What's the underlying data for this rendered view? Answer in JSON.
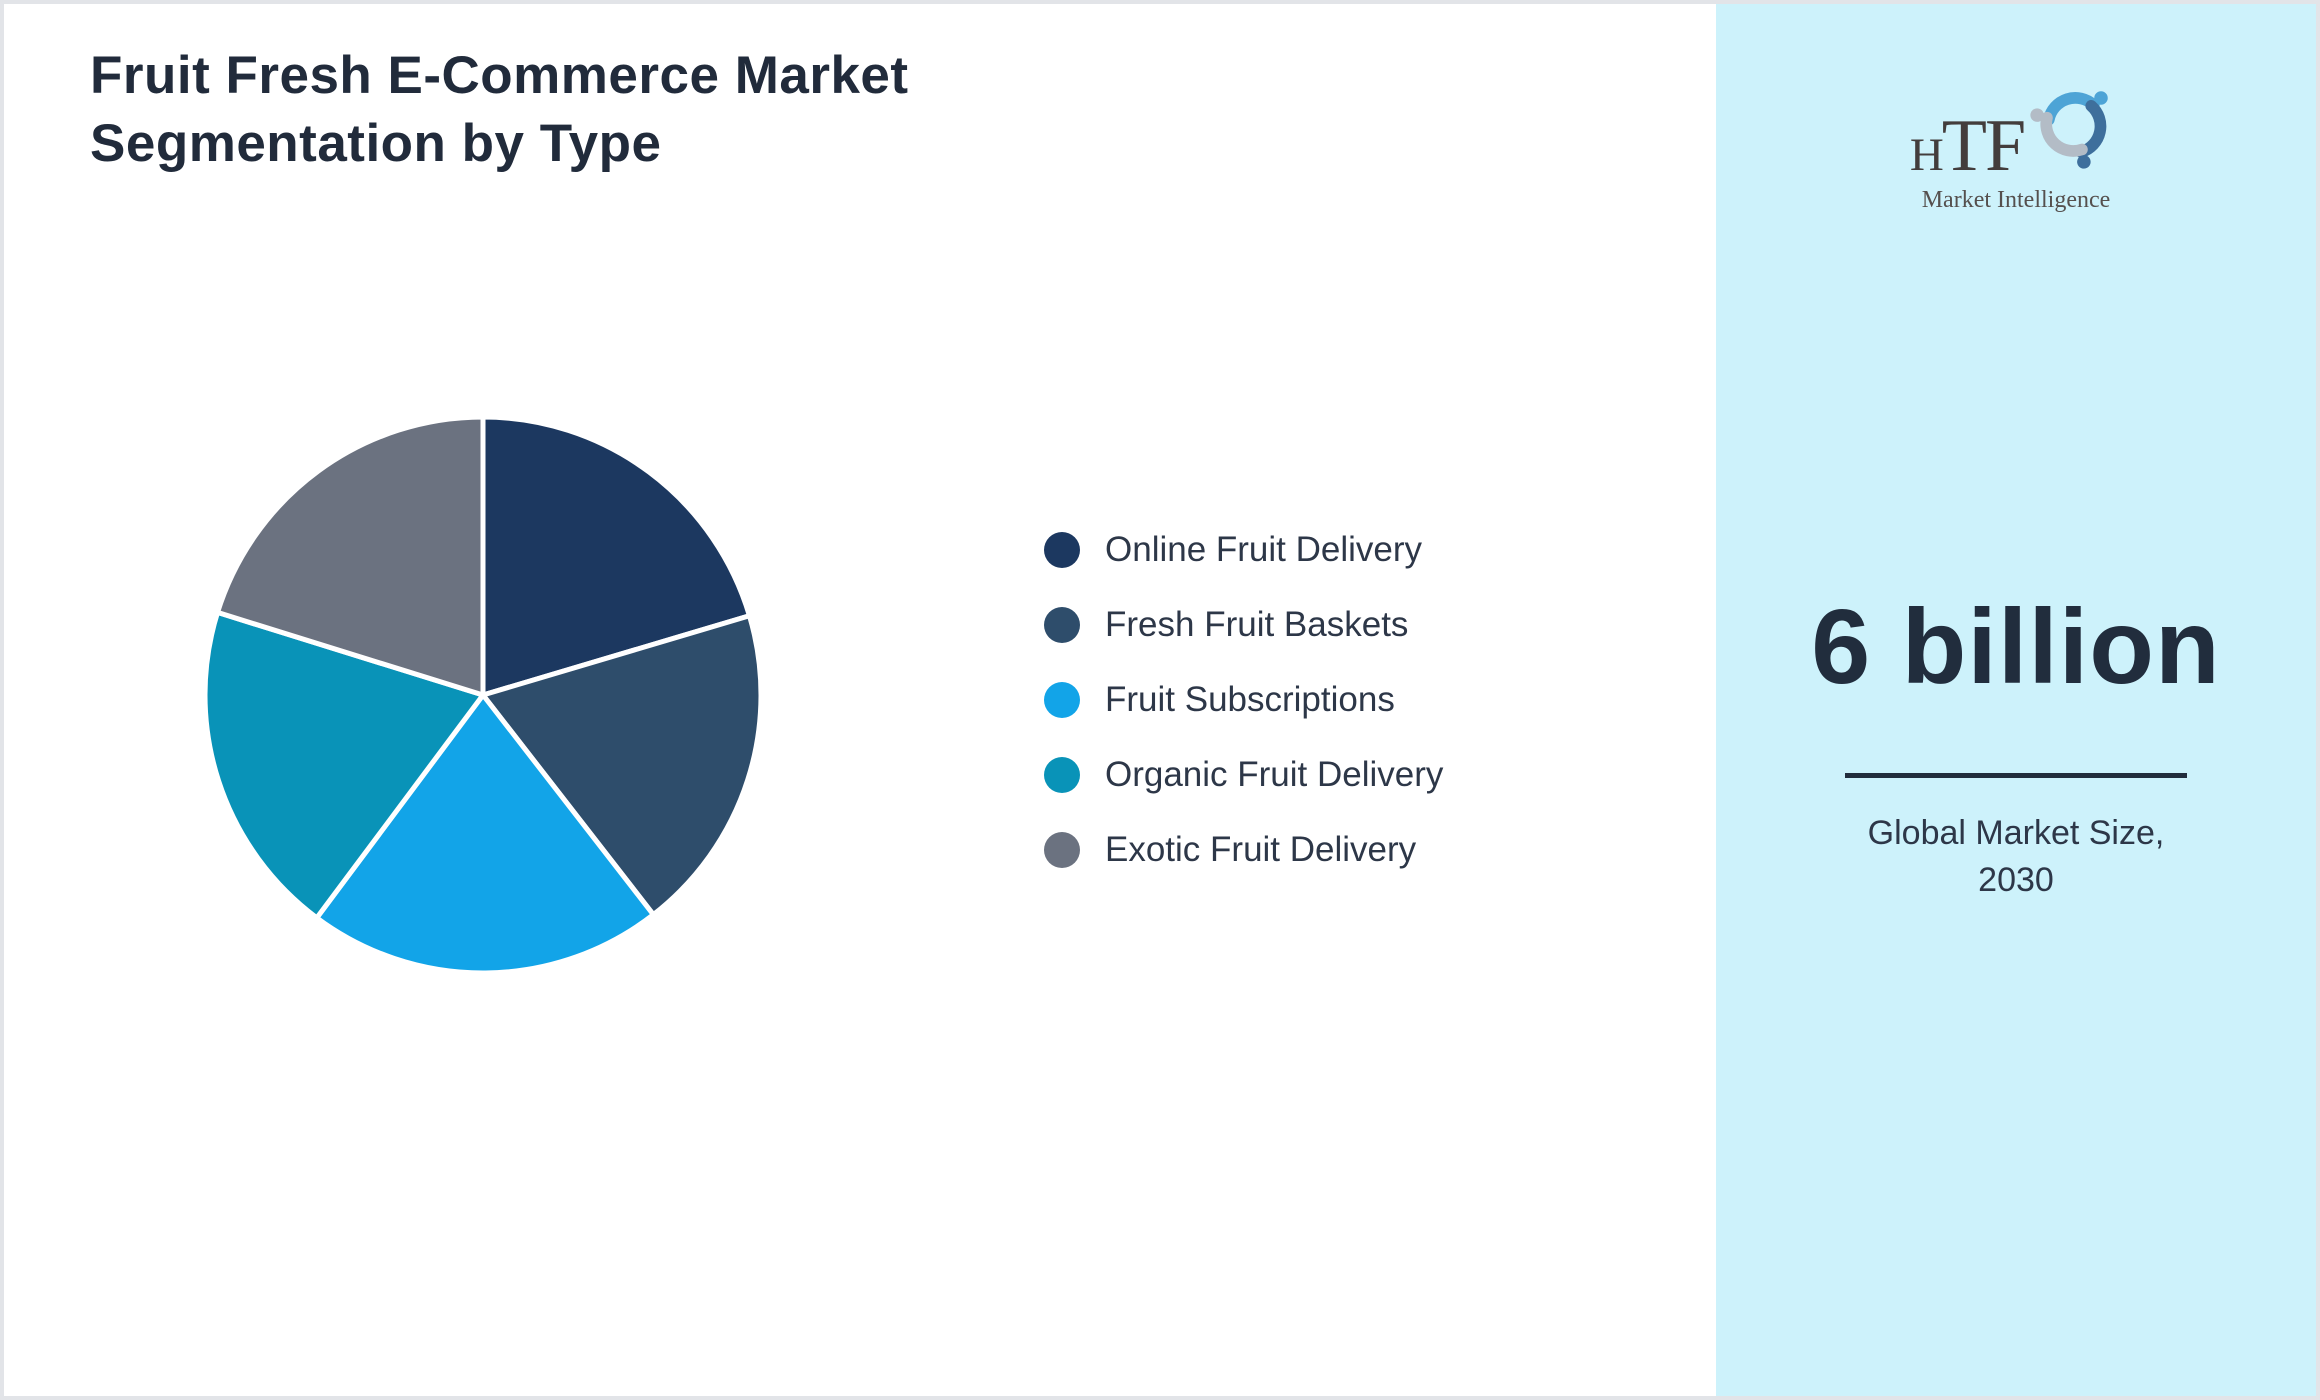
{
  "header": {
    "title": "Fruit Fresh E-Commerce Market Segmentation by Type"
  },
  "chart_data": {
    "type": "pie",
    "title": "Fruit Fresh E-Commerce Market Segmentation by Type",
    "labels": [
      "Online Fruit Delivery",
      "Fresh Fruit Baskets",
      "Fruit Subscriptions",
      "Organic Fruit Delivery",
      "Exotic Fruit Delivery"
    ],
    "values": [
      20.4,
      19.1,
      20.7,
      19.6,
      20.2
    ],
    "unit": "percent share (estimated from arc angles, no data labels shown)",
    "colors": [
      "#1c3860",
      "#2e4d6b",
      "#12a4e8",
      "#0993b8",
      "#6b7280"
    ],
    "start_angle_deg": -90,
    "direction": "clockwise",
    "slice_border_color": "#ffffff",
    "slice_border_width": 5,
    "legend_position": "right-middle",
    "legend_marker": "circle"
  },
  "sidebar": {
    "background": "#cdf2fb",
    "logo": {
      "text_small": "H",
      "text_large": "TF",
      "subtitle": "Market Intelligence",
      "swirl_colors": [
        "#4da4d6",
        "#3e6f9c",
        "#b3bcc6"
      ]
    },
    "stat_value": "6 billion",
    "caption_line1": "Global Market Size,",
    "caption_line2": "2030",
    "divider_color": "#212d3c"
  },
  "colors": {
    "page_border": "#e2e4e8",
    "canvas_background": "#ffffff",
    "title_text": "#212b3b",
    "legend_text": "#2d3748",
    "stat_text": "#212d3d"
  }
}
